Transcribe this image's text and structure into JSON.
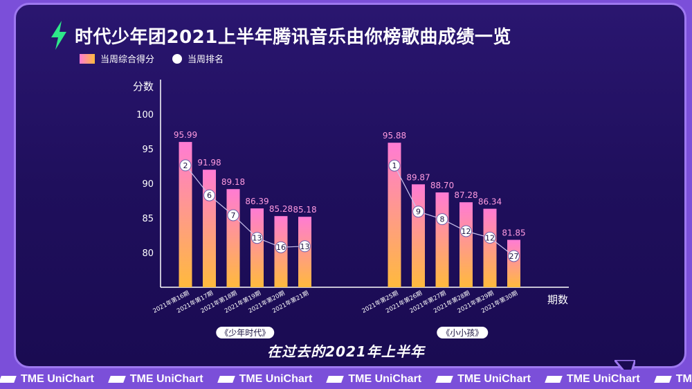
{
  "title": "时代少年团2021上半年腾讯音乐由你榜歌曲成绩一览",
  "subtitle": "在过去的2021年上半年",
  "watermark": "TME UniChart",
  "colors": {
    "bar_top": "#ff7bd4",
    "bar_bottom": "#ffba3d",
    "value_label": "#ff9be0",
    "rank_line": "#c9c2ee",
    "axis": "#ffffff",
    "accent_bolt": "#2ee889"
  },
  "legend": {
    "score_label": "当周综合得分",
    "rank_label": "当周排名"
  },
  "chart_data": {
    "type": "bar",
    "ylabel": "分数",
    "xlabel": "期数",
    "ylim": [
      75,
      100
    ],
    "yticks": [
      80,
      85,
      90,
      95,
      100
    ],
    "groups": [
      {
        "name": "《少年时代》",
        "categories": [
          "2021年第16期",
          "2021年第17期",
          "2021年第18期",
          "2021年第19期",
          "2021年第20期",
          "2021年第21期"
        ],
        "scores": [
          95.99,
          91.98,
          89.18,
          86.39,
          85.28,
          85.18
        ],
        "ranks": [
          2,
          6,
          7,
          13,
          16,
          13
        ]
      },
      {
        "name": "《小小孩》",
        "categories": [
          "2021年第25期",
          "2021年第26期",
          "2021年第27期",
          "2021年第28期",
          "2021年第29期",
          "2021年第30期"
        ],
        "scores": [
          95.88,
          89.87,
          88.7,
          87.28,
          86.34,
          81.85
        ],
        "ranks": [
          1,
          9,
          8,
          12,
          12,
          27
        ]
      }
    ]
  }
}
